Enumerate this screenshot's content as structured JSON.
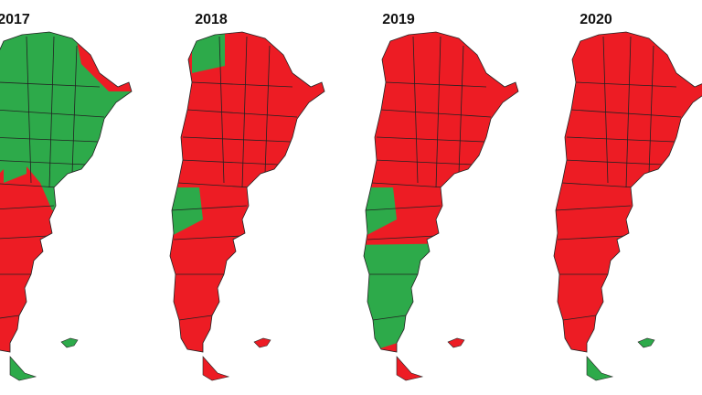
{
  "maps": [
    {
      "title": "2017"
    },
    {
      "title": "2018"
    },
    {
      "title": "2019"
    },
    {
      "title": "2020"
    }
  ]
}
